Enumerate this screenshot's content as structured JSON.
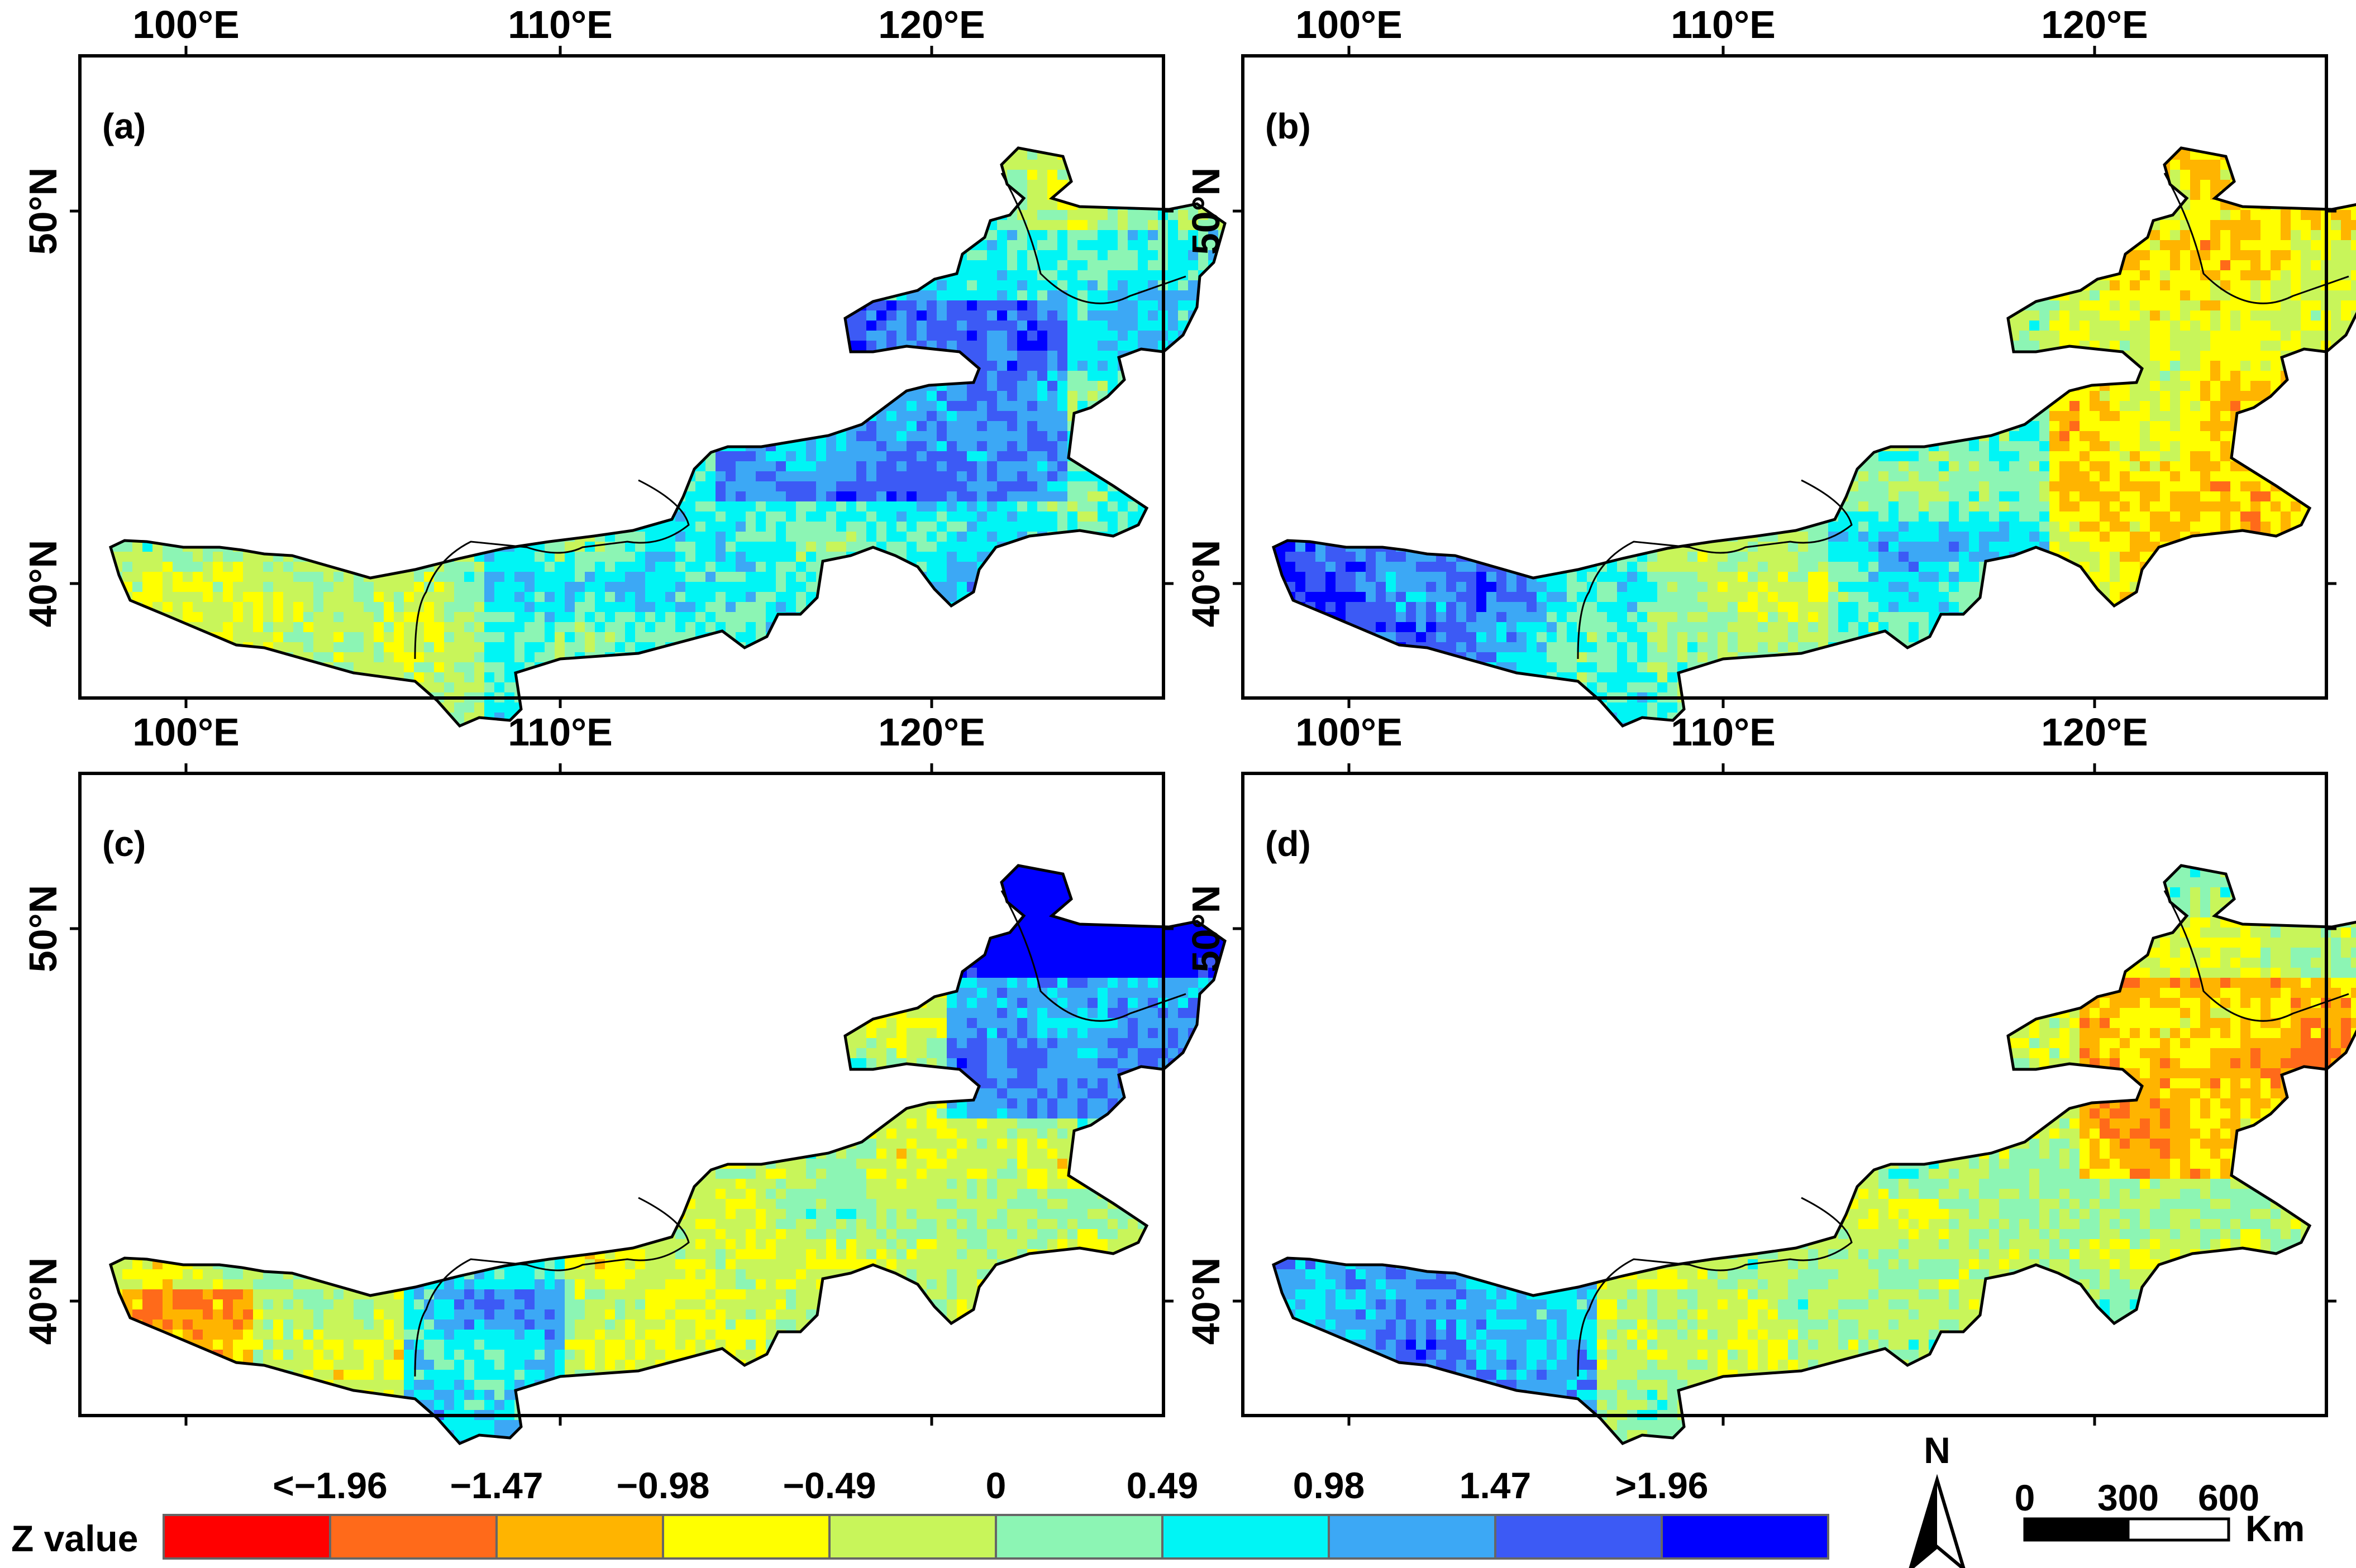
{
  "panels": [
    {
      "label": "(a)",
      "pattern": "a"
    },
    {
      "label": "(b)",
      "pattern": "b"
    },
    {
      "label": "(c)",
      "pattern": "c"
    },
    {
      "label": "(d)",
      "pattern": "d"
    }
  ],
  "axes": {
    "lon_ticks": [
      "100°E",
      "110°E",
      "120°E"
    ],
    "lat_ticks": [
      "50°N",
      "40°N"
    ]
  },
  "legend": {
    "title": "Z value",
    "break_labels": [
      "<−1.96",
      "−1.47",
      "−0.98",
      "−0.49",
      "0",
      "0.49",
      "0.98",
      "1.47",
      ">1.96"
    ],
    "colors": [
      "#ff0000",
      "#ff6a1a",
      "#ffb400",
      "#ffff00",
      "#c8f55a",
      "#8cf5b4",
      "#00f5f5",
      "#3ca8f5",
      "#3c5af5",
      "#0000ff"
    ]
  },
  "north_arrow": {
    "label": "N"
  },
  "scale_bar": {
    "ticks": [
      "0",
      "300",
      "600"
    ],
    "unit": "Km"
  }
}
